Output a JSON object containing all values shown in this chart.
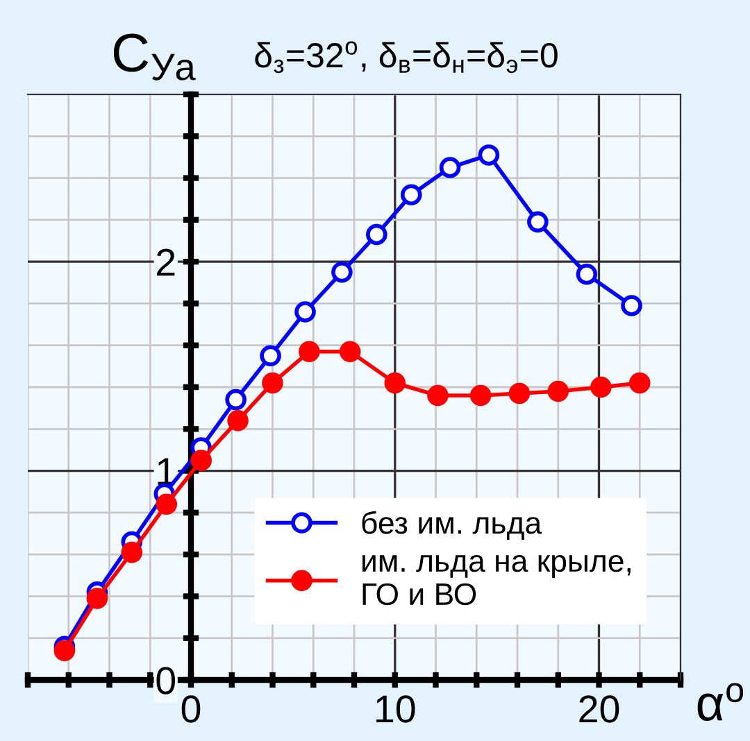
{
  "chart_data": {
    "type": "line",
    "title": "δ$_{з}$=32$^{o}$, δ$_{в}$=δ$_{н}$=δ$_{э}$=0",
    "ylabel": "C$_{Уа}$",
    "xlabel": "α$^{o}$",
    "xlim": [
      -8,
      24
    ],
    "ylim": [
      0,
      2.8
    ],
    "xticks": [
      {
        "value": -8,
        "label": null
      },
      {
        "value": -6,
        "label": null
      },
      {
        "value": -4,
        "label": null
      },
      {
        "value": -2,
        "label": null
      },
      0,
      {
        "value": 2,
        "label": null
      },
      {
        "value": 4,
        "label": null
      },
      {
        "value": 6,
        "label": null
      },
      {
        "value": 8,
        "label": null
      },
      10,
      {
        "value": 12,
        "label": null
      },
      {
        "value": 14,
        "label": null
      },
      {
        "value": 16,
        "label": null
      },
      {
        "value": 18,
        "label": null
      },
      20,
      {
        "value": 22,
        "label": null
      },
      {
        "value": 24,
        "label": null
      }
    ],
    "yticks": [
      0,
      {
        "value": 0.2,
        "label": null
      },
      {
        "value": 0.4,
        "label": null
      },
      {
        "value": 0.6,
        "label": null
      },
      {
        "value": 0.8,
        "label": null
      },
      1,
      {
        "value": 1.2,
        "label": null
      },
      {
        "value": 1.4,
        "label": null
      },
      {
        "value": 1.6,
        "label": null
      },
      {
        "value": 1.8,
        "label": null
      },
      2,
      {
        "value": 2.2,
        "label": null
      },
      {
        "value": 2.4,
        "label": null
      },
      {
        "value": 2.6,
        "label": null
      },
      {
        "value": 2.8,
        "label": null
      }
    ],
    "grid": true,
    "legend": "bottom right",
    "marker": "circle",
    "line_style": "solid",
    "series": [
      {
        "name": "без им. льда",
        "color": "#0000ff",
        "x": [
          -6.2,
          -4.6,
          -2.9,
          -1.3,
          0.5,
          2.2,
          3.9,
          5.6,
          7.4,
          9.1,
          10.8,
          12.7,
          14.6,
          17.0,
          19.4,
          21.6
        ],
        "values": [
          0.16,
          0.42,
          0.66,
          0.89,
          1.11,
          1.34,
          1.55,
          1.76,
          1.95,
          2.13,
          2.32,
          2.45,
          2.51,
          2.19,
          1.94,
          1.79
        ]
      },
      {
        "name": "им. льда на крыле,\nГО и ВО",
        "color": "#ff0000",
        "x": [
          -6.2,
          -4.6,
          -2.9,
          -1.2,
          0.5,
          2.3,
          4.0,
          5.8,
          7.8,
          10.0,
          12.1,
          14.2,
          16.1,
          18.0,
          20.1,
          22.0
        ],
        "values": [
          0.14,
          0.39,
          0.61,
          0.84,
          1.05,
          1.24,
          1.42,
          1.57,
          1.57,
          1.42,
          1.36,
          1.36,
          1.37,
          1.38,
          1.4,
          1.42
        ]
      }
    ]
  }
}
